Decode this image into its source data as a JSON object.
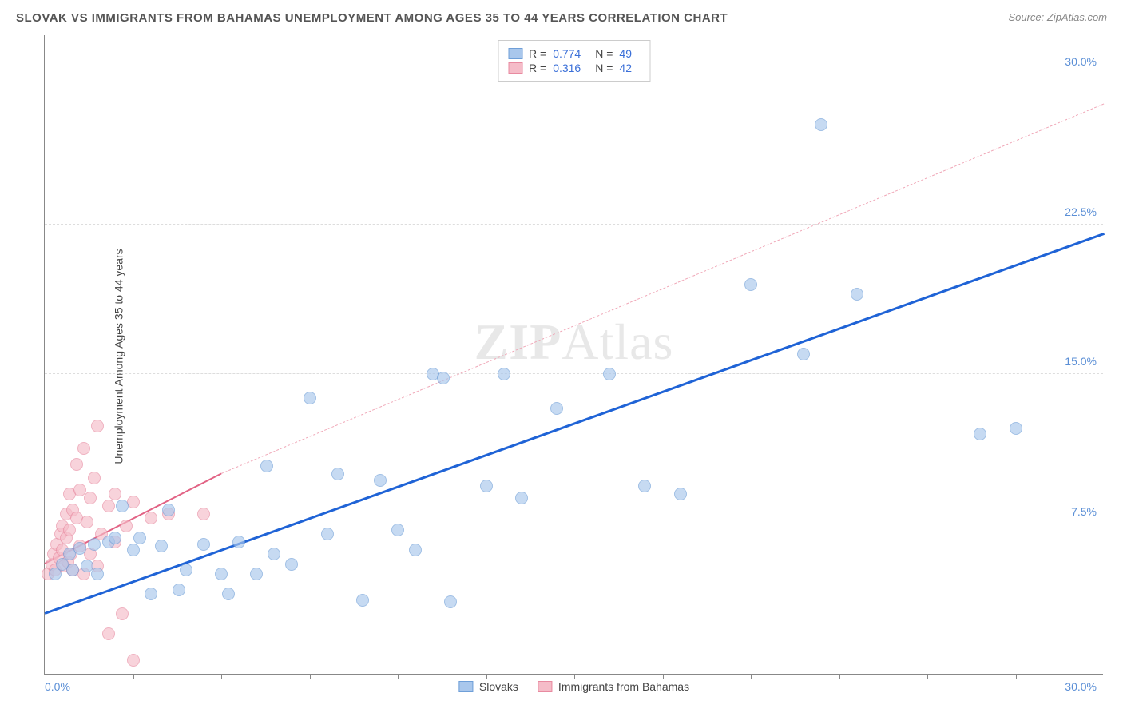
{
  "title": "SLOVAK VS IMMIGRANTS FROM BAHAMAS UNEMPLOYMENT AMONG AGES 35 TO 44 YEARS CORRELATION CHART",
  "source": "Source: ZipAtlas.com",
  "ylabel": "Unemployment Among Ages 35 to 44 years",
  "watermark_a": "ZIP",
  "watermark_b": "Atlas",
  "chart": {
    "type": "scatter",
    "background_color": "#ffffff",
    "grid_color": "#dddddd",
    "axis_color": "#888888",
    "tick_font_color": "#5b8fd6",
    "tick_fontsize": 14,
    "title_fontsize": 15,
    "label_fontsize": 14,
    "xlim": [
      0,
      30
    ],
    "ylim": [
      0,
      32
    ],
    "ytick_labels": [
      "7.5%",
      "15.0%",
      "22.5%",
      "30.0%"
    ],
    "ytick_values": [
      7.5,
      15.0,
      22.5,
      30.0
    ],
    "xtick_values": [
      2.5,
      5,
      7.5,
      10,
      12.5,
      15,
      17.5,
      20,
      22.5,
      25,
      27.5
    ],
    "x_min_label": "0.0%",
    "x_max_label": "30.0%",
    "point_radius": 8,
    "series": {
      "slovaks": {
        "label": "Slovaks",
        "fill": "#a9c7ec",
        "stroke": "#6f9fd8",
        "R": "0.774",
        "N": "49",
        "trend": {
          "x1": 0,
          "y1": 3.0,
          "x2": 30,
          "y2": 22.0,
          "color": "#1f63d6",
          "width": 2.5
        },
        "points": [
          [
            0.3,
            5.0
          ],
          [
            0.5,
            5.5
          ],
          [
            0.7,
            6.0
          ],
          [
            0.8,
            5.2
          ],
          [
            1.0,
            6.3
          ],
          [
            1.2,
            5.4
          ],
          [
            1.4,
            6.5
          ],
          [
            1.5,
            5.0
          ],
          [
            1.8,
            6.6
          ],
          [
            2.0,
            6.8
          ],
          [
            2.2,
            8.4
          ],
          [
            2.5,
            6.2
          ],
          [
            2.7,
            6.8
          ],
          [
            3.0,
            4.0
          ],
          [
            3.3,
            6.4
          ],
          [
            3.5,
            8.2
          ],
          [
            3.8,
            4.2
          ],
          [
            4.0,
            5.2
          ],
          [
            4.5,
            6.5
          ],
          [
            5.0,
            5.0
          ],
          [
            5.2,
            4.0
          ],
          [
            5.5,
            6.6
          ],
          [
            6.0,
            5.0
          ],
          [
            6.3,
            10.4
          ],
          [
            6.5,
            6.0
          ],
          [
            7.0,
            5.5
          ],
          [
            7.5,
            13.8
          ],
          [
            8.0,
            7.0
          ],
          [
            8.3,
            10.0
          ],
          [
            9.0,
            3.7
          ],
          [
            9.5,
            9.7
          ],
          [
            10.0,
            7.2
          ],
          [
            10.5,
            6.2
          ],
          [
            11.0,
            15.0
          ],
          [
            11.3,
            14.8
          ],
          [
            11.5,
            3.6
          ],
          [
            12.5,
            9.4
          ],
          [
            13.0,
            15.0
          ],
          [
            13.5,
            8.8
          ],
          [
            14.5,
            13.3
          ],
          [
            16.0,
            15.0
          ],
          [
            17.0,
            9.4
          ],
          [
            18.0,
            9.0
          ],
          [
            20.0,
            19.5
          ],
          [
            21.5,
            16.0
          ],
          [
            22.0,
            27.5
          ],
          [
            23.0,
            19.0
          ],
          [
            26.5,
            12.0
          ],
          [
            27.5,
            12.3
          ]
        ]
      },
      "bahamas": {
        "label": "Immigrants from Bahamas",
        "fill": "#f5bcc8",
        "stroke": "#e88aa0",
        "R": "0.316",
        "N": "42",
        "trend_solid": {
          "x1": 0,
          "y1": 5.5,
          "x2": 5.0,
          "y2": 10.0,
          "color": "#e26385",
          "width": 2
        },
        "trend_dash": {
          "x1": 5.0,
          "y1": 10.0,
          "x2": 30,
          "y2": 28.5,
          "color": "#f0a8b8",
          "width": 1.5
        },
        "points": [
          [
            0.1,
            5.0
          ],
          [
            0.2,
            5.5
          ],
          [
            0.25,
            6.0
          ],
          [
            0.3,
            5.2
          ],
          [
            0.35,
            6.5
          ],
          [
            0.4,
            5.8
          ],
          [
            0.45,
            7.0
          ],
          [
            0.5,
            6.2
          ],
          [
            0.5,
            7.4
          ],
          [
            0.55,
            5.4
          ],
          [
            0.6,
            6.8
          ],
          [
            0.6,
            8.0
          ],
          [
            0.65,
            5.6
          ],
          [
            0.7,
            7.2
          ],
          [
            0.7,
            9.0
          ],
          [
            0.75,
            6.0
          ],
          [
            0.8,
            8.2
          ],
          [
            0.8,
            5.2
          ],
          [
            0.9,
            7.8
          ],
          [
            0.9,
            10.5
          ],
          [
            1.0,
            6.4
          ],
          [
            1.0,
            9.2
          ],
          [
            1.1,
            5.0
          ],
          [
            1.1,
            11.3
          ],
          [
            1.2,
            7.6
          ],
          [
            1.3,
            8.8
          ],
          [
            1.3,
            6.0
          ],
          [
            1.4,
            9.8
          ],
          [
            1.5,
            5.4
          ],
          [
            1.5,
            12.4
          ],
          [
            1.6,
            7.0
          ],
          [
            1.8,
            8.4
          ],
          [
            1.8,
            2.0
          ],
          [
            2.0,
            6.6
          ],
          [
            2.0,
            9.0
          ],
          [
            2.2,
            3.0
          ],
          [
            2.3,
            7.4
          ],
          [
            2.5,
            8.6
          ],
          [
            2.5,
            0.7
          ],
          [
            3.0,
            7.8
          ],
          [
            3.5,
            8.0
          ],
          [
            4.5,
            8.0
          ]
        ]
      }
    },
    "legend_top": {
      "R_label": "R =",
      "N_label": "N ="
    }
  }
}
